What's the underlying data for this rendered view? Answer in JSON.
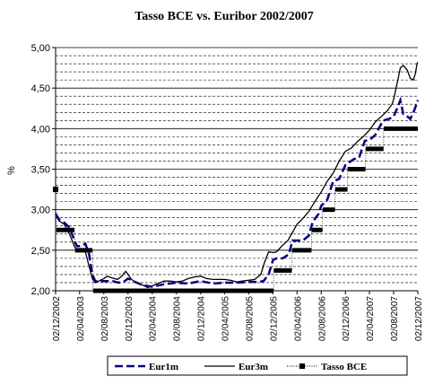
{
  "chart_data": {
    "type": "line",
    "title": "Tasso BCE vs. Euribor 2002/2007",
    "ylabel": "%",
    "xlabel": "",
    "ylim": [
      2.0,
      5.0
    ],
    "yticks": [
      "2,00",
      "2,50",
      "3,00",
      "3,50",
      "4,00",
      "4,50",
      "5,00"
    ],
    "xticks": [
      "02/12/2002",
      "02/04/2003",
      "02/08/2003",
      "02/12/2003",
      "02/04/2004",
      "02/08/2004",
      "02/12/2004",
      "02/04/2005",
      "02/08/2005",
      "02/12/2005",
      "02/04/2006",
      "02/08/2006",
      "02/12/2006",
      "02/04/2007",
      "02/08/2007",
      "02/12/2007"
    ],
    "grid": "horizontal",
    "legend_position": "bottom",
    "series": [
      {
        "name": "Eur1m",
        "style": "dashed",
        "color": "#000080",
        "points": [
          [
            "2002-12-02",
            2.95
          ],
          [
            "2002-12-20",
            2.88
          ],
          [
            "2003-01-15",
            2.84
          ],
          [
            "2003-02-10",
            2.78
          ],
          [
            "2003-03-07",
            2.62
          ],
          [
            "2003-03-20",
            2.55
          ],
          [
            "2003-04-10",
            2.55
          ],
          [
            "2003-05-01",
            2.58
          ],
          [
            "2003-05-20",
            2.45
          ],
          [
            "2003-06-05",
            2.2
          ],
          [
            "2003-06-20",
            2.12
          ],
          [
            "2003-08-01",
            2.12
          ],
          [
            "2003-09-15",
            2.12
          ],
          [
            "2003-10-15",
            2.1
          ],
          [
            "2003-11-15",
            2.12
          ],
          [
            "2003-12-02",
            2.15
          ],
          [
            "2004-01-15",
            2.1
          ],
          [
            "2004-02-15",
            2.07
          ],
          [
            "2004-04-01",
            2.05
          ],
          [
            "2004-06-01",
            2.08
          ],
          [
            "2004-08-01",
            2.1
          ],
          [
            "2004-10-01",
            2.09
          ],
          [
            "2004-12-02",
            2.12
          ],
          [
            "2005-02-01",
            2.09
          ],
          [
            "2005-04-01",
            2.1
          ],
          [
            "2005-06-01",
            2.1
          ],
          [
            "2005-08-01",
            2.11
          ],
          [
            "2005-09-15",
            2.11
          ],
          [
            "2005-10-15",
            2.12
          ],
          [
            "2005-11-10",
            2.2
          ],
          [
            "2005-12-02",
            2.38
          ],
          [
            "2005-12-20",
            2.4
          ],
          [
            "2006-01-20",
            2.4
          ],
          [
            "2006-02-20",
            2.45
          ],
          [
            "2006-03-10",
            2.62
          ],
          [
            "2006-04-02",
            2.62
          ],
          [
            "2006-05-01",
            2.62
          ],
          [
            "2006-06-01",
            2.68
          ],
          [
            "2006-06-20",
            2.85
          ],
          [
            "2006-07-20",
            2.95
          ],
          [
            "2006-08-02",
            3.05
          ],
          [
            "2006-09-01",
            3.12
          ],
          [
            "2006-10-01",
            3.35
          ],
          [
            "2006-11-01",
            3.38
          ],
          [
            "2006-12-02",
            3.55
          ],
          [
            "2007-01-10",
            3.62
          ],
          [
            "2007-02-10",
            3.65
          ],
          [
            "2007-03-10",
            3.85
          ],
          [
            "2007-04-02",
            3.86
          ],
          [
            "2007-05-01",
            3.92
          ],
          [
            "2007-06-10",
            4.1
          ],
          [
            "2007-07-10",
            4.12
          ],
          [
            "2007-08-02",
            4.15
          ],
          [
            "2007-08-20",
            4.25
          ],
          [
            "2007-09-05",
            4.35
          ],
          [
            "2007-09-20",
            4.18
          ],
          [
            "2007-10-10",
            4.15
          ],
          [
            "2007-10-25",
            4.12
          ],
          [
            "2007-11-10",
            4.2
          ],
          [
            "2007-11-25",
            4.3
          ],
          [
            "2007-12-02",
            4.35
          ]
        ]
      },
      {
        "name": "Eur3m",
        "style": "solid",
        "color": "#000000",
        "points": [
          [
            "2002-12-02",
            2.93
          ],
          [
            "2002-12-20",
            2.86
          ],
          [
            "2003-01-15",
            2.82
          ],
          [
            "2003-02-10",
            2.7
          ],
          [
            "2003-03-07",
            2.55
          ],
          [
            "2003-03-20",
            2.5
          ],
          [
            "2003-04-10",
            2.52
          ],
          [
            "2003-05-01",
            2.48
          ],
          [
            "2003-05-20",
            2.3
          ],
          [
            "2003-06-05",
            2.15
          ],
          [
            "2003-06-20",
            2.1
          ],
          [
            "2003-07-15",
            2.13
          ],
          [
            "2003-08-02",
            2.15
          ],
          [
            "2003-08-20",
            2.18
          ],
          [
            "2003-09-10",
            2.16
          ],
          [
            "2003-10-10",
            2.14
          ],
          [
            "2003-11-01",
            2.18
          ],
          [
            "2003-11-20",
            2.24
          ],
          [
            "2003-12-02",
            2.2
          ],
          [
            "2003-12-20",
            2.14
          ],
          [
            "2004-01-20",
            2.09
          ],
          [
            "2004-02-15",
            2.07
          ],
          [
            "2004-03-10",
            2.04
          ],
          [
            "2004-04-02",
            2.06
          ],
          [
            "2004-05-01",
            2.09
          ],
          [
            "2004-06-01",
            2.12
          ],
          [
            "2004-07-01",
            2.12
          ],
          [
            "2004-08-02",
            2.11
          ],
          [
            "2004-09-01",
            2.12
          ],
          [
            "2004-10-01",
            2.15
          ],
          [
            "2004-11-01",
            2.17
          ],
          [
            "2004-12-02",
            2.18
          ],
          [
            "2005-01-01",
            2.15
          ],
          [
            "2005-02-01",
            2.14
          ],
          [
            "2005-03-01",
            2.14
          ],
          [
            "2005-04-02",
            2.14
          ],
          [
            "2005-05-01",
            2.13
          ],
          [
            "2005-06-01",
            2.11
          ],
          [
            "2005-07-01",
            2.12
          ],
          [
            "2005-08-02",
            2.13
          ],
          [
            "2005-09-01",
            2.14
          ],
          [
            "2005-10-01",
            2.2
          ],
          [
            "2005-10-20",
            2.35
          ],
          [
            "2005-11-10",
            2.48
          ],
          [
            "2005-12-02",
            2.47
          ],
          [
            "2005-12-20",
            2.48
          ],
          [
            "2006-01-15",
            2.55
          ],
          [
            "2006-02-15",
            2.62
          ],
          [
            "2006-03-10",
            2.72
          ],
          [
            "2006-04-02",
            2.82
          ],
          [
            "2006-05-01",
            2.89
          ],
          [
            "2006-06-01",
            2.98
          ],
          [
            "2006-07-01",
            3.1
          ],
          [
            "2006-08-02",
            3.22
          ],
          [
            "2006-09-01",
            3.35
          ],
          [
            "2006-10-01",
            3.45
          ],
          [
            "2006-11-01",
            3.6
          ],
          [
            "2006-12-02",
            3.72
          ],
          [
            "2007-01-01",
            3.76
          ],
          [
            "2007-02-01",
            3.84
          ],
          [
            "2007-03-01",
            3.9
          ],
          [
            "2007-04-02",
            3.98
          ],
          [
            "2007-05-01",
            4.08
          ],
          [
            "2007-06-01",
            4.15
          ],
          [
            "2007-07-01",
            4.22
          ],
          [
            "2007-07-25",
            4.3
          ],
          [
            "2007-08-02",
            4.36
          ],
          [
            "2007-08-10",
            4.45
          ],
          [
            "2007-08-25",
            4.62
          ],
          [
            "2007-09-05",
            4.75
          ],
          [
            "2007-09-20",
            4.78
          ],
          [
            "2007-10-10",
            4.72
          ],
          [
            "2007-10-25",
            4.62
          ],
          [
            "2007-11-10",
            4.6
          ],
          [
            "2007-11-20",
            4.68
          ],
          [
            "2007-11-28",
            4.8
          ],
          [
            "2007-12-02",
            4.82
          ]
        ]
      },
      {
        "name": "Tasso BCE",
        "style": "dotted-markers",
        "color": "#000000",
        "points": [
          [
            "2002-12-02",
            3.25
          ],
          [
            "2002-12-06",
            2.75
          ],
          [
            "2003-03-07",
            2.75
          ],
          [
            "2003-03-10",
            2.5
          ],
          [
            "2003-06-06",
            2.5
          ],
          [
            "2003-06-09",
            2.0
          ],
          [
            "2005-12-05",
            2.0
          ],
          [
            "2005-12-06",
            2.25
          ],
          [
            "2006-03-07",
            2.25
          ],
          [
            "2006-03-08",
            2.5
          ],
          [
            "2006-06-14",
            2.5
          ],
          [
            "2006-06-15",
            2.75
          ],
          [
            "2006-08-08",
            2.75
          ],
          [
            "2006-08-09",
            3.0
          ],
          [
            "2006-10-10",
            3.0
          ],
          [
            "2006-10-11",
            3.25
          ],
          [
            "2006-12-12",
            3.25
          ],
          [
            "2006-12-13",
            3.5
          ],
          [
            "2007-03-13",
            3.5
          ],
          [
            "2007-03-14",
            3.75
          ],
          [
            "2007-06-12",
            3.75
          ],
          [
            "2007-06-13",
            4.0
          ],
          [
            "2007-12-02",
            4.0
          ]
        ]
      }
    ]
  }
}
